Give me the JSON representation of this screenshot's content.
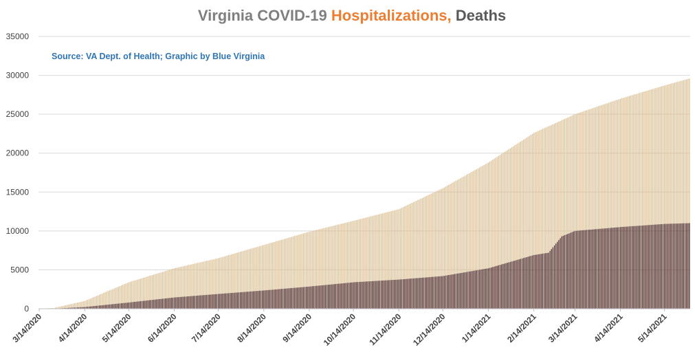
{
  "chart_data": {
    "type": "bar",
    "title": {
      "part1": "Virginia COVID-19 ",
      "part2": "Hospitalizations,",
      "part3": " Deaths"
    },
    "source_note": "Source: VA Dept. of Health; Graphic by Blue Virginia",
    "x_start": "3/14/2020",
    "x_end": "5/31/2021",
    "x_tick_labels": [
      "3/14/2020",
      "4/14/2020",
      "5/14/2020",
      "6/14/2020",
      "7/14/2020",
      "8/14/2020",
      "9/14/2020",
      "10/14/2020",
      "11/14/2020",
      "12/14/2020",
      "1/14/2021",
      "2/14/2021",
      "3/14/2021",
      "4/14/2021",
      "5/14/2021"
    ],
    "y_ticks": [
      0,
      5000,
      10000,
      15000,
      20000,
      25000,
      30000,
      35000
    ],
    "ylim": [
      0,
      35000
    ],
    "grid": true,
    "series": [
      {
        "name": "Hospitalizations",
        "color": "#d9b98a",
        "anchors": [
          [
            "3/14/2020",
            0
          ],
          [
            "3/24/2020",
            100
          ],
          [
            "4/14/2020",
            1000
          ],
          [
            "5/14/2020",
            3400
          ],
          [
            "6/14/2020",
            5200
          ],
          [
            "7/14/2020",
            6500
          ],
          [
            "8/14/2020",
            8200
          ],
          [
            "9/14/2020",
            9900
          ],
          [
            "10/14/2020",
            11300
          ],
          [
            "11/14/2020",
            12800
          ],
          [
            "12/14/2020",
            15500
          ],
          [
            "1/14/2021",
            18800
          ],
          [
            "2/14/2021",
            22600
          ],
          [
            "3/14/2021",
            25000
          ],
          [
            "4/14/2021",
            27000
          ],
          [
            "5/14/2021",
            28700
          ],
          [
            "5/31/2021",
            29600
          ]
        ]
      },
      {
        "name": "Deaths",
        "color": "#3a1212",
        "anchors": [
          [
            "3/14/2020",
            0
          ],
          [
            "3/24/2020",
            10
          ],
          [
            "4/14/2020",
            220
          ],
          [
            "5/14/2020",
            800
          ],
          [
            "6/14/2020",
            1450
          ],
          [
            "7/14/2020",
            1900
          ],
          [
            "8/14/2020",
            2350
          ],
          [
            "9/14/2020",
            2850
          ],
          [
            "10/14/2020",
            3400
          ],
          [
            "11/14/2020",
            3750
          ],
          [
            "12/14/2020",
            4200
          ],
          [
            "1/14/2021",
            5200
          ],
          [
            "2/14/2021",
            6900
          ],
          [
            "2/24/2021",
            7200
          ],
          [
            "3/5/2021",
            9300
          ],
          [
            "3/14/2021",
            10000
          ],
          [
            "4/14/2021",
            10500
          ],
          [
            "5/14/2021",
            10900
          ],
          [
            "5/31/2021",
            11000
          ]
        ]
      }
    ]
  }
}
